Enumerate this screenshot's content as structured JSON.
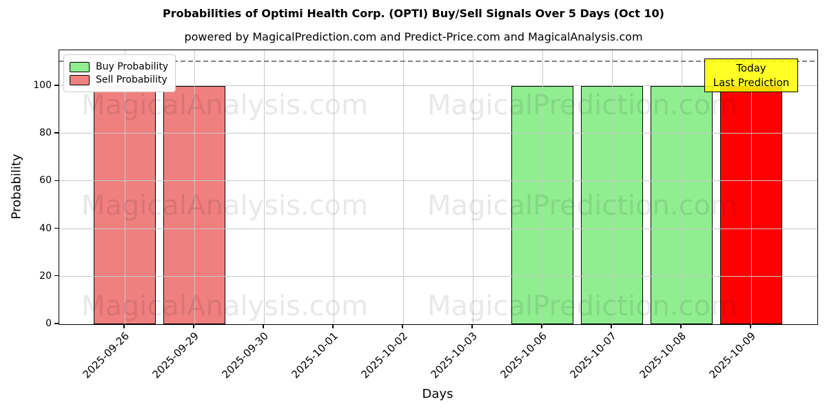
{
  "header": {
    "title": "Probabilities of Optimi Health Corp. (OPTI) Buy/Sell Signals Over 5 Days (Oct 10)",
    "subtitle": "powered by MagicalPrediction.com and Predict-Price.com and MagicalAnalysis.com"
  },
  "chart_data": {
    "type": "bar",
    "title": "Probabilities of Optimi Health Corp. (OPTI) Buy/Sell Signals Over 5 Days (Oct 10)",
    "xlabel": "Days",
    "ylabel": "Probability",
    "categories": [
      "2025-09-26",
      "2025-09-29",
      "2025-09-30",
      "2025-10-01",
      "2025-10-02",
      "2025-10-03",
      "2025-10-06",
      "2025-10-07",
      "2025-10-08",
      "2025-10-09"
    ],
    "series": [
      {
        "name": "Buy Probability",
        "color": "#90EE90",
        "values": [
          0,
          0,
          0,
          0,
          0,
          0,
          100,
          100,
          100,
          0
        ]
      },
      {
        "name": "Sell Probability",
        "color": "#F08080",
        "values": [
          100,
          100,
          0,
          0,
          0,
          0,
          0,
          0,
          0,
          0
        ]
      },
      {
        "name": "Today Last Prediction",
        "color": "#FF0000",
        "values": [
          0,
          0,
          0,
          0,
          0,
          0,
          0,
          0,
          0,
          100
        ]
      }
    ],
    "ylim": [
      0,
      115
    ],
    "yticks": [
      0,
      20,
      40,
      60,
      80,
      100
    ],
    "threshold_line": {
      "y": 110,
      "style": "dashed",
      "color": "#808080"
    },
    "grid": true,
    "legend": {
      "position": "upper-left",
      "entries": [
        {
          "label": "Buy Probability",
          "color": "#90EE90"
        },
        {
          "label": "Sell Probability",
          "color": "#F08080"
        }
      ]
    }
  },
  "annotation": {
    "line1": "Today",
    "line2": "Last Prediction",
    "bg_color": "#FFFF00"
  },
  "watermark": {
    "left_text": "MagicalAnalysis.com",
    "right_text": "MagicalPrediction.com"
  },
  "colors": {
    "buy_bar": "#90EE90",
    "sell_bar": "#F08080",
    "today_bar": "#FF0000",
    "bar_edge": "#000000",
    "grid": "#C8C8C8",
    "threshold": "#808080",
    "annotation_bg": "#FFFF00"
  }
}
